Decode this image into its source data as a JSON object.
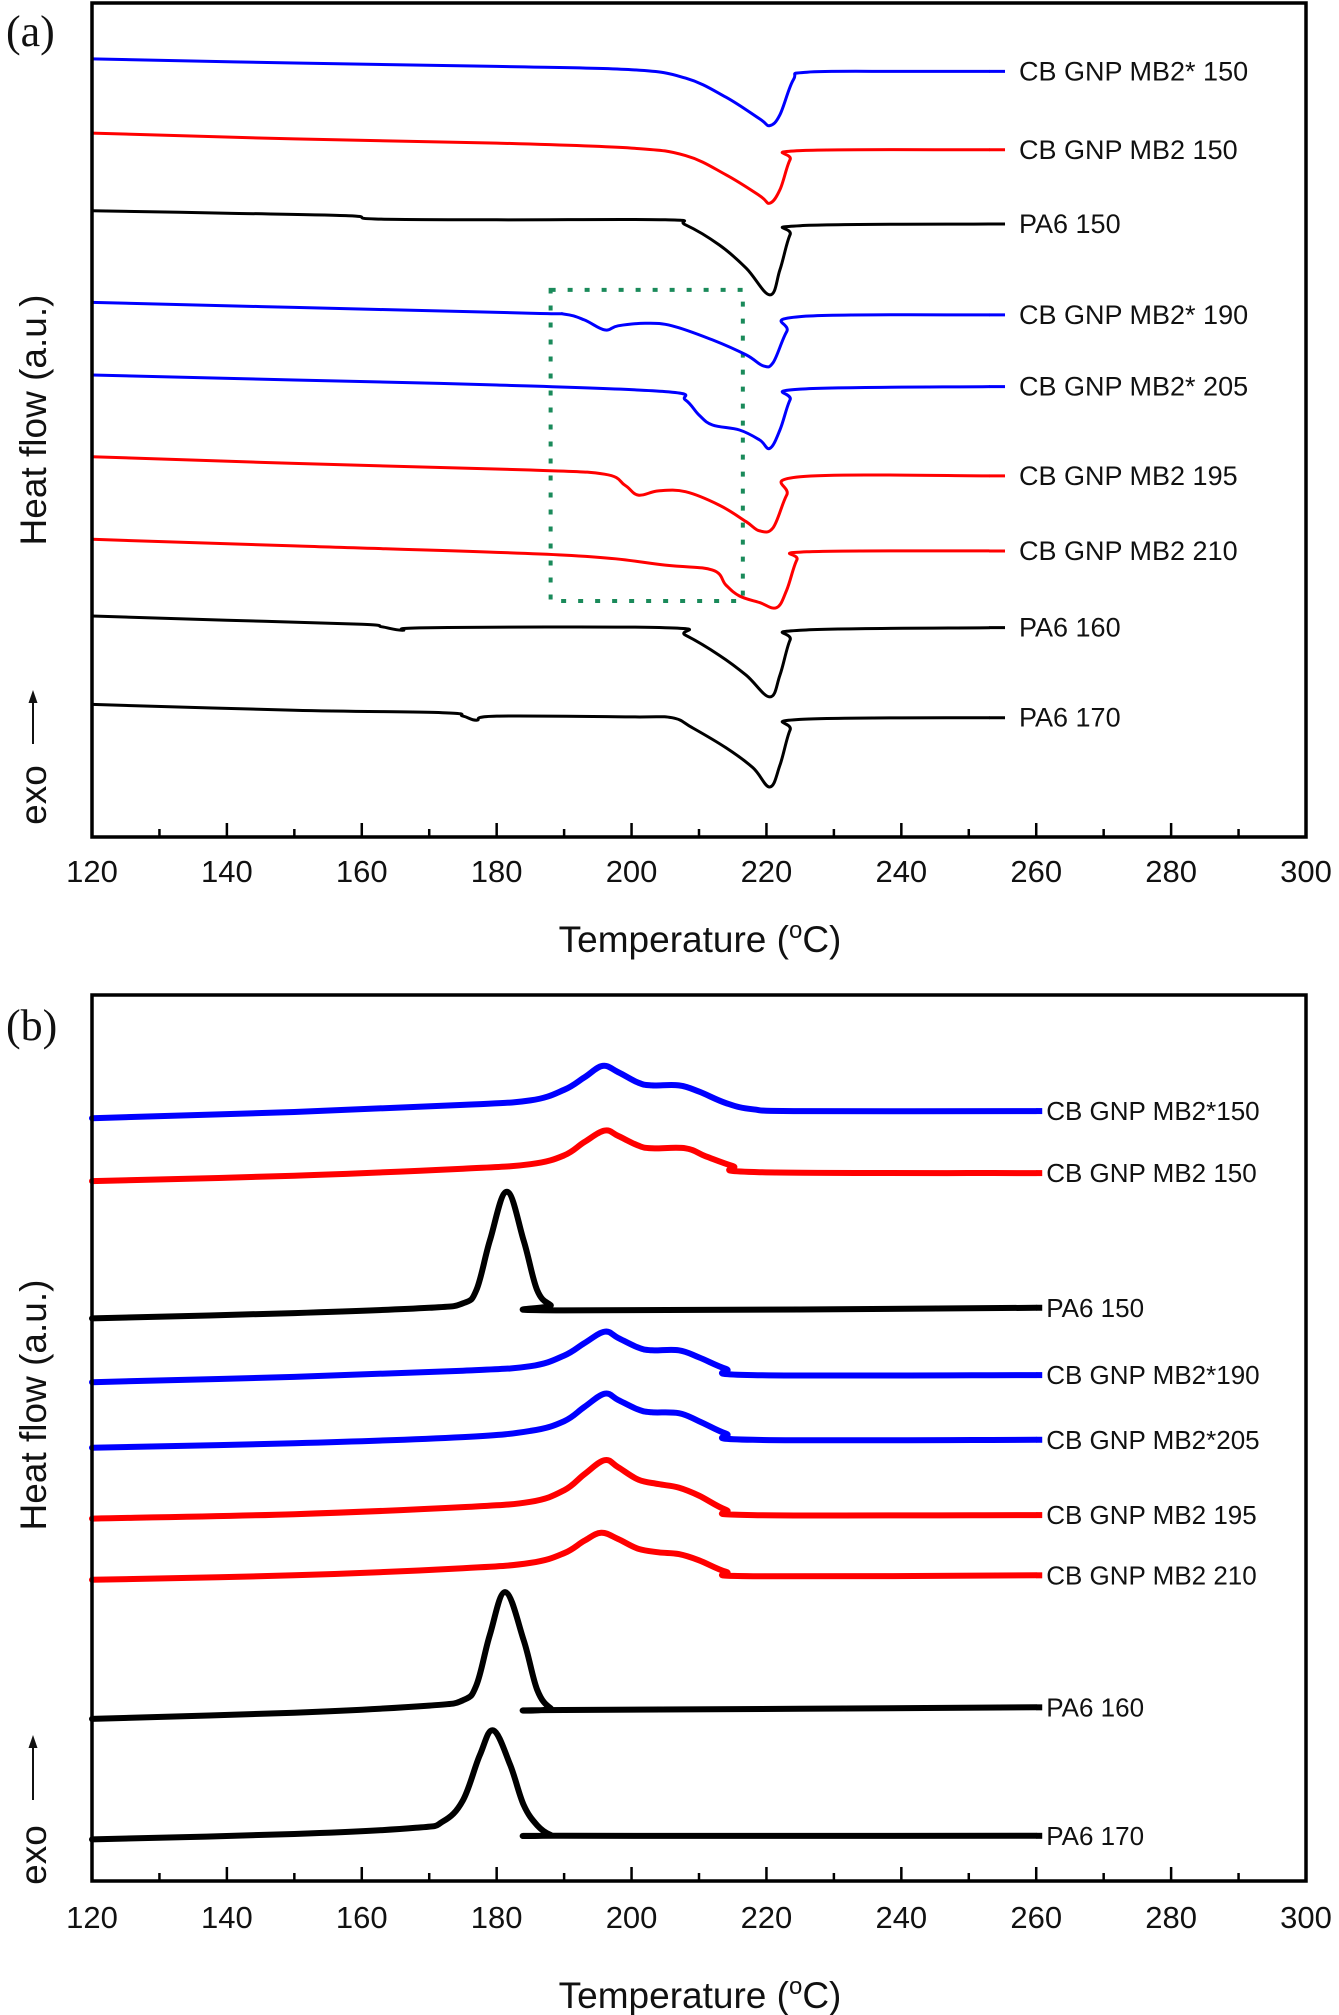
{
  "chart_data": [
    {
      "id": "a",
      "type": "line",
      "panel_label": "(a)",
      "title": "",
      "xlabel": "Temperature (°C)",
      "xlabel_main": "Temperature (",
      "xlabel_unit": "o",
      "xlabel_tail": "C)",
      "ylabel": "Heat flow (a.u.)",
      "direction_note": "exo",
      "xlim": [
        120,
        300
      ],
      "ylim": [
        0,
        100
      ],
      "xticks": [
        120,
        140,
        160,
        180,
        200,
        220,
        240,
        260,
        280,
        300
      ],
      "xminor_ticks": [
        130,
        150,
        170,
        190,
        210,
        230,
        250,
        270,
        290
      ],
      "yticks": [],
      "grid": false,
      "legend": "inline labels at right end of each curve",
      "highlight_box": {
        "x": [
          188,
          216.5
        ],
        "y": [
          28.3,
          65.6
        ],
        "color": "#1a8a5a",
        "style": "dotted"
      },
      "series": [
        {
          "name": "CB GNP MB2* 150",
          "color": "#0000ff",
          "x": [
            120,
            150,
            180,
            200,
            208,
            214,
            219,
            220.5,
            222,
            224,
            226,
            240,
            253
          ],
          "y": [
            93.3,
            92.8,
            92.4,
            92.0,
            91.0,
            88.7,
            86.1,
            85.3,
            86.6,
            90.8,
            91.7,
            91.8,
            91.8
          ]
        },
        {
          "name": "CB GNP MB2 150",
          "color": "#ff0000",
          "x": [
            120,
            150,
            180,
            200,
            208,
            214,
            219,
            220.5,
            222,
            223.5,
            225,
            253
          ],
          "y": [
            84.4,
            83.7,
            83.2,
            82.6,
            81.7,
            79.4,
            76.9,
            76.0,
            77.6,
            81.2,
            82.3,
            82.4
          ]
        },
        {
          "name": "PA6 150",
          "color": "#000000",
          "x": [
            120,
            140,
            158,
            162,
            180,
            205,
            208,
            213,
            217,
            220.5,
            222,
            223.5,
            225,
            253
          ],
          "y": [
            75.1,
            74.8,
            74.5,
            74.1,
            74.0,
            74.0,
            73.4,
            71.0,
            68.2,
            65.0,
            68.0,
            72.2,
            73.3,
            73.5
          ]
        },
        {
          "name": "CB GNP MB2* 190",
          "color": "#0000ff",
          "x": [
            120,
            150,
            185,
            190,
            193,
            196,
            198,
            202,
            206,
            212,
            217,
            219.5,
            221,
            223,
            225,
            253
          ],
          "y": [
            64.1,
            63.5,
            62.8,
            62.7,
            62.0,
            60.8,
            61.3,
            61.6,
            61.3,
            59.6,
            57.8,
            56.5,
            56.9,
            60.6,
            62.4,
            62.6
          ]
        },
        {
          "name": "CB GNP MB2* 205",
          "color": "#0000ff",
          "x": [
            120,
            150,
            180,
            205,
            208,
            210,
            212,
            216,
            219,
            220.5,
            222,
            223.5,
            225,
            253
          ],
          "y": [
            55.4,
            54.8,
            54.2,
            53.4,
            52.4,
            50.6,
            49.4,
            48.8,
            47.6,
            46.6,
            48.8,
            52.4,
            53.7,
            54.0
          ]
        },
        {
          "name": "CB GNP MB2 195",
          "color": "#ff0000",
          "x": [
            120,
            150,
            185,
            196,
            199,
            201,
            204,
            208,
            213,
            217,
            219,
            221,
            223,
            225,
            253
          ],
          "y": [
            45.6,
            44.8,
            44.0,
            43.5,
            42.2,
            41.0,
            41.5,
            41.4,
            39.8,
            37.8,
            36.7,
            37.1,
            41.0,
            43.2,
            43.3
          ]
        },
        {
          "name": "CB GNP MB2 210",
          "color": "#ff0000",
          "x": [
            120,
            150,
            190,
            205,
            212,
            214,
            216,
            219,
            221.5,
            223,
            224.5,
            226,
            253
          ],
          "y": [
            35.7,
            34.9,
            33.8,
            32.6,
            32.0,
            30.2,
            28.9,
            28.1,
            27.5,
            29.6,
            33.2,
            34.2,
            34.3
          ]
        },
        {
          "name": "PA6 160",
          "color": "#000000",
          "x": [
            120,
            140,
            160,
            163,
            166,
            170,
            205,
            208,
            213,
            217,
            220.5,
            222,
            223.5,
            225,
            253
          ],
          "y": [
            26.5,
            26.0,
            25.5,
            25.2,
            24.8,
            25.1,
            25.1,
            24.2,
            21.8,
            19.4,
            16.8,
            19.4,
            23.6,
            24.8,
            25.1
          ]
        },
        {
          "name": "PA6 170",
          "color": "#000000",
          "x": [
            120,
            150,
            172,
            175,
            177,
            180,
            200,
            206,
            209,
            214,
            218,
            220.5,
            222,
            223.5,
            225,
            253
          ],
          "y": [
            15.9,
            15.2,
            14.9,
            14.5,
            14.0,
            14.5,
            14.4,
            14.3,
            13.1,
            10.7,
            8.3,
            6.0,
            8.6,
            12.8,
            14.1,
            14.3
          ]
        }
      ]
    },
    {
      "id": "b",
      "type": "line",
      "panel_label": "(b)",
      "title": "",
      "xlabel": "Temperature (°C)",
      "xlabel_main": "Temperature (",
      "xlabel_unit": "o",
      "xlabel_tail": "C)",
      "ylabel": "Heat flow (a.u.)",
      "direction_note": "exo",
      "xlim": [
        120,
        300
      ],
      "ylim": [
        0,
        100
      ],
      "xticks": [
        120,
        140,
        160,
        180,
        200,
        220,
        240,
        260,
        280,
        300
      ],
      "xminor_ticks": [
        130,
        150,
        170,
        190,
        210,
        230,
        250,
        270,
        290
      ],
      "yticks": [],
      "grid": false,
      "legend": "inline labels at right end of each curve",
      "series": [
        {
          "name": "CB GNP MB2*150",
          "color": "#0000ff",
          "x": [
            120,
            150,
            175,
            185,
            190,
            193,
            195.7,
            198,
            201,
            203,
            207,
            210,
            214,
            218,
            225,
            260
          ],
          "y": [
            86.1,
            86.8,
            87.6,
            88.1,
            89.3,
            90.7,
            92.0,
            91.3,
            90.1,
            89.8,
            89.8,
            89.1,
            87.8,
            87.1,
            86.9,
            86.9
          ]
        },
        {
          "name": "CB GNP MB2 150",
          "color": "#ff0000",
          "x": [
            120,
            150,
            175,
            185,
            190,
            193,
            196,
            198,
            201,
            203,
            208,
            211,
            215,
            219,
            260
          ],
          "y": [
            79.0,
            79.6,
            80.4,
            80.9,
            81.9,
            83.4,
            84.7,
            84.1,
            83.0,
            82.7,
            82.7,
            81.8,
            80.7,
            80.0,
            79.9
          ]
        },
        {
          "name": "PA6 150",
          "color": "#000000",
          "x": [
            120,
            150,
            170,
            175,
            177,
            179,
            181.5,
            184,
            186,
            188,
            190,
            260
          ],
          "y": [
            63.5,
            64.1,
            64.7,
            65.2,
            66.7,
            72.3,
            77.8,
            72.3,
            66.7,
            65.0,
            64.4,
            64.7
          ]
        },
        {
          "name": "CB GNP MB2*190",
          "color": "#0000ff",
          "x": [
            120,
            150,
            175,
            185,
            190,
            193,
            196,
            198,
            201,
            203,
            207,
            210,
            214,
            218,
            260
          ],
          "y": [
            56.3,
            56.9,
            57.6,
            58.1,
            59.3,
            60.7,
            62.0,
            61.3,
            60.2,
            59.9,
            59.9,
            59.1,
            57.8,
            57.1,
            57.1
          ]
        },
        {
          "name": "CB GNP MB2*205",
          "color": "#0000ff",
          "x": [
            120,
            150,
            175,
            185,
            190,
            193,
            196,
            198,
            201,
            203,
            207,
            210,
            214,
            218,
            260
          ],
          "y": [
            48.9,
            49.4,
            50.1,
            50.8,
            51.9,
            53.5,
            55.0,
            54.3,
            53.2,
            52.9,
            52.8,
            51.9,
            50.5,
            49.8,
            49.8
          ]
        },
        {
          "name": "CB GNP MB2 195",
          "color": "#ff0000",
          "x": [
            120,
            150,
            175,
            185,
            190,
            193,
            196,
            198,
            201,
            204,
            207,
            210,
            214,
            218,
            260
          ],
          "y": [
            40.9,
            41.4,
            42.2,
            42.8,
            44.1,
            45.9,
            47.5,
            46.7,
            45.3,
            44.8,
            44.4,
            43.5,
            41.9,
            41.3,
            41.3
          ]
        },
        {
          "name": "CB GNP MB2 210",
          "color": "#ff0000",
          "x": [
            120,
            150,
            175,
            185,
            190,
            193,
            195.5,
            198,
            201,
            204,
            207,
            210,
            214,
            218,
            260
          ],
          "y": [
            34.0,
            34.5,
            35.3,
            35.9,
            37.0,
            38.4,
            39.3,
            38.6,
            37.5,
            37.1,
            36.9,
            36.2,
            34.9,
            34.4,
            34.5
          ]
        },
        {
          "name": "PA6 160",
          "color": "#000000",
          "x": [
            120,
            150,
            170,
            175,
            177,
            179,
            181.3,
            184,
            186,
            188,
            190,
            260
          ],
          "y": [
            18.3,
            19.0,
            19.8,
            20.4,
            22.1,
            27.8,
            32.6,
            27.2,
            21.6,
            19.5,
            19.3,
            19.6
          ]
        },
        {
          "name": "PA6 170",
          "color": "#000000",
          "x": [
            120,
            150,
            168,
            172,
            175,
            177.5,
            179.5,
            182,
            184,
            186,
            188,
            190,
            260
          ],
          "y": [
            4.7,
            5.3,
            6.0,
            6.7,
            9.1,
            14.2,
            17.0,
            13.1,
            8.6,
            6.3,
            5.2,
            5.1,
            5.1
          ]
        }
      ]
    }
  ]
}
